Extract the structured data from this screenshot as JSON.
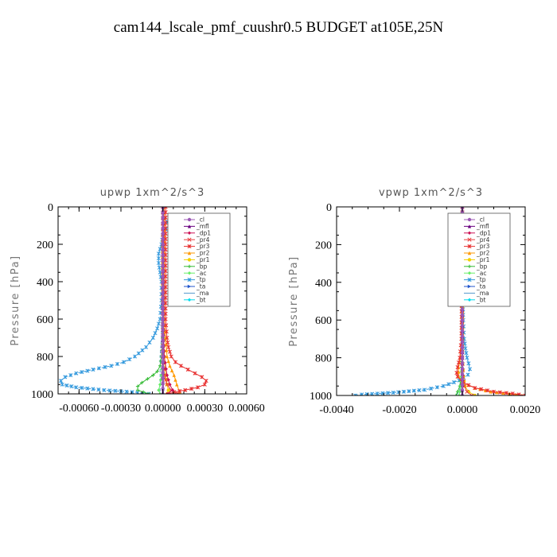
{
  "figure": {
    "title": "cam144_lscale_pmf_cuushr0.5  BUDGET at105E,25N"
  },
  "legend_entries": [
    {
      "name": "_cl",
      "color": "#9b59b6"
    },
    {
      "name": "_mfl",
      "color": "#6a0080"
    },
    {
      "name": "_dp1",
      "color": "#cc1155"
    },
    {
      "name": "_pr4",
      "color": "#e84040"
    },
    {
      "name": "_pr3",
      "color": "#e83030"
    },
    {
      "name": "_pr2",
      "color": "#ff9900"
    },
    {
      "name": "_pr1",
      "color": "#f2d000"
    },
    {
      "name": "_bp",
      "color": "#33bb33"
    },
    {
      "name": "_ac",
      "color": "#66ee66"
    },
    {
      "name": "_tp",
      "color": "#3399dd"
    },
    {
      "name": "_ta",
      "color": "#2255cc"
    },
    {
      "name": "_ma",
      "color": "#5599cc"
    },
    {
      "name": "_bt",
      "color": "#00ddee"
    }
  ],
  "chart_data": [
    {
      "type": "line",
      "title": "upwp   1xm^2/s^3",
      "xlabel": "",
      "ylabel": "Pressure [hPa]",
      "xlim": [
        -0.00075,
        0.0006
      ],
      "ylim": [
        1000,
        0
      ],
      "x_ticks": [
        -0.0006,
        -0.0003,
        0.0,
        0.0003,
        0.0006
      ],
      "x_tick_labels": [
        "-0.00060",
        "-0.00030",
        "0.00000",
        "0.00030",
        "0.00060"
      ],
      "y_ticks": [
        0,
        200,
        400,
        600,
        800,
        1000
      ],
      "y_tick_labels": [
        "0",
        "200",
        "400",
        "600",
        "800",
        "1000"
      ],
      "series": [
        {
          "name": "_tp",
          "color": "#3399dd",
          "p": [
            0,
            60,
            100,
            120,
            150,
            200,
            250,
            300,
            350,
            400,
            500,
            600,
            650,
            700,
            750,
            800,
            830,
            850,
            870,
            890,
            910,
            930,
            950,
            965,
            980,
            990,
            1000
          ],
          "x": [
            0.0,
            1e-05,
            5e-05,
            2e-05,
            0.0,
            -1e-05,
            -3e-05,
            -3e-05,
            -2e-05,
            -1e-05,
            -1e-05,
            -2e-05,
            -4e-05,
            -7e-05,
            -0.00012,
            -0.0002,
            -0.00028,
            -0.00037,
            -0.0005,
            -0.00062,
            -0.0007,
            -0.00073,
            -0.00072,
            -0.00062,
            -0.00042,
            -0.00022,
            -0.0001
          ]
        },
        {
          "name": "_ma",
          "color": "#5599cc",
          "p": [
            0,
            200,
            400,
            600,
            700,
            800,
            850,
            900,
            950,
            1000
          ],
          "x": [
            0.0,
            0.0,
            0.0,
            -1e-05,
            -1e-05,
            -2e-05,
            -2e-05,
            -2e-05,
            -2e-05,
            -2e-05
          ]
        },
        {
          "name": "_bp",
          "color": "#33bb33",
          "p": [
            0,
            400,
            600,
            700,
            800,
            850,
            880,
            900,
            920,
            940,
            960,
            980,
            1000
          ],
          "x": [
            0.0,
            0.0,
            0.0,
            0.0,
            -1e-05,
            -2e-05,
            -4e-05,
            -7e-05,
            -0.00011,
            -0.00015,
            -0.00018,
            -0.00018,
            -0.0001
          ]
        },
        {
          "name": "_ac",
          "color": "#66ee66",
          "p": [
            0,
            600,
            800,
            900,
            950,
            980,
            1000
          ],
          "x": [
            0.0,
            0.0,
            0.0,
            -1e-05,
            -2e-05,
            -3e-05,
            -2e-05
          ]
        },
        {
          "name": "_pr1",
          "color": "#f2d000",
          "p": [
            0,
            600,
            800,
            900,
            950,
            980,
            1000
          ],
          "x": [
            0.0,
            0.0,
            1e-05,
            2e-05,
            3e-05,
            4e-05,
            3e-05
          ]
        },
        {
          "name": "_pr2",
          "color": "#ff9900",
          "p": [
            0,
            400,
            600,
            700,
            800,
            850,
            900,
            950,
            990,
            1000
          ],
          "x": [
            1e-05,
            1e-05,
            1e-05,
            2e-05,
            3e-05,
            5e-05,
            8e-05,
            0.0001,
            0.00012,
            0.0001
          ]
        },
        {
          "name": "_pr3",
          "color": "#e83030",
          "p": [
            0,
            200,
            400,
            600,
            700,
            750,
            800,
            830,
            850,
            870,
            890,
            910,
            930,
            950,
            965,
            980,
            990,
            1000
          ],
          "x": [
            2e-05,
            2e-05,
            2e-05,
            2e-05,
            3e-05,
            4e-05,
            6e-05,
            9e-05,
            0.00013,
            0.00018,
            0.00023,
            0.00028,
            0.00031,
            0.0003,
            0.00025,
            0.00016,
            8e-05,
            4e-05
          ]
        },
        {
          "name": "_pr4",
          "color": "#e84040",
          "p": [
            0,
            600,
            800,
            900,
            950,
            980,
            1000
          ],
          "x": [
            0.0,
            0.0,
            0.0,
            1e-05,
            3e-05,
            6e-05,
            0.00011
          ]
        },
        {
          "name": "_dp1",
          "color": "#cc1155",
          "p": [
            0,
            200,
            400,
            600,
            800,
            900,
            950,
            980,
            1000
          ],
          "x": [
            0.0,
            0.0,
            0.0,
            0.0,
            1e-05,
            3e-05,
            5e-05,
            7e-05,
            3e-05
          ]
        },
        {
          "name": "_mfl",
          "color": "#6a0080",
          "p": [
            0,
            200,
            400,
            600,
            800,
            1000
          ],
          "x": [
            0.0,
            0.0,
            0.0,
            0.0,
            0.0,
            0.0
          ]
        },
        {
          "name": "_cl",
          "color": "#9b59b6",
          "p": [
            0,
            200,
            400,
            600,
            800,
            1000
          ],
          "x": [
            0.0,
            0.0,
            0.0,
            0.0,
            0.0,
            0.0
          ]
        }
      ]
    },
    {
      "type": "line",
      "title": "vpwp   1xm^2/s^3",
      "xlabel": "",
      "ylabel": "Pressure [hPa]",
      "xlim": [
        -0.004,
        0.002
      ],
      "ylim": [
        1000,
        0
      ],
      "x_ticks": [
        -0.004,
        -0.002,
        0.0,
        0.002
      ],
      "x_tick_labels": [
        "-0.0040",
        "-0.0020",
        "0.0000",
        "0.0020"
      ],
      "y_ticks": [
        0,
        200,
        400,
        600,
        800,
        1000
      ],
      "y_tick_labels": [
        "0",
        "200",
        "400",
        "600",
        "800",
        "1000"
      ],
      "series": [
        {
          "name": "_tp",
          "color": "#3399dd",
          "p": [
            0,
            400,
            600,
            700,
            750,
            800,
            830,
            860,
            890,
            920,
            950,
            970,
            985,
            995,
            1000
          ],
          "x": [
            0.0,
            0.0,
            3e-05,
            6e-05,
            0.0001,
            0.00015,
            0.0002,
            0.00024,
            0.00018,
            -0.0001,
            -0.0006,
            -0.0012,
            -0.0022,
            -0.0032,
            -0.0034
          ]
        },
        {
          "name": "_ma",
          "color": "#5599cc",
          "p": [
            0,
            600,
            800,
            900,
            950,
            980,
            1000
          ],
          "x": [
            0.0,
            0.0,
            0.0,
            -3e-05,
            -6e-05,
            -0.0001,
            -0.0002
          ]
        },
        {
          "name": "_bp",
          "color": "#33bb33",
          "p": [
            0,
            700,
            850,
            900,
            950,
            980,
            1000
          ],
          "x": [
            0.0,
            0.0,
            -2e-05,
            -4e-05,
            -8e-05,
            -0.00015,
            -0.0002
          ]
        },
        {
          "name": "_ac",
          "color": "#66ee66",
          "p": [
            0,
            800,
            900,
            950,
            980,
            1000
          ],
          "x": [
            0.0,
            0.0,
            -2e-05,
            -4e-05,
            -8e-05,
            -0.0001
          ]
        },
        {
          "name": "_pr1",
          "color": "#f2d000",
          "p": [
            0,
            800,
            900,
            950,
            980,
            1000
          ],
          "x": [
            0.0,
            0.0,
            3e-05,
            8e-05,
            0.0002,
            0.0004
          ]
        },
        {
          "name": "_pr2",
          "color": "#ff9900",
          "p": [
            0,
            700,
            800,
            850,
            900,
            930,
            960,
            980,
            990,
            1000
          ],
          "x": [
            0.0,
            -2e-05,
            -6e-05,
            -0.00012,
            -0.00012,
            0.0,
            0.0004,
            0.0009,
            0.0015,
            0.0019
          ]
        },
        {
          "name": "_pr3",
          "color": "#e83030",
          "p": [
            0,
            700,
            800,
            850,
            880,
            900,
            930,
            960,
            980,
            990,
            1000
          ],
          "x": [
            0.0,
            -3e-05,
            -8e-05,
            -0.00015,
            -0.00018,
            -0.00015,
            0.0,
            0.0004,
            0.001,
            0.0016,
            0.002
          ]
        },
        {
          "name": "_pr4",
          "color": "#e84040",
          "p": [
            0,
            800,
            900,
            950,
            980,
            1000
          ],
          "x": [
            0.0,
            0.0,
            2e-05,
            6e-05,
            0.00015,
            0.0003
          ]
        },
        {
          "name": "_dp1",
          "color": "#cc1155",
          "p": [
            0,
            200,
            400,
            600,
            800,
            1000
          ],
          "x": [
            0.0,
            0.0,
            0.0,
            0.0,
            0.0,
            0.0
          ]
        },
        {
          "name": "_mfl",
          "color": "#6a0080",
          "p": [
            0,
            200,
            400,
            600,
            800,
            1000
          ],
          "x": [
            0.0,
            0.0,
            0.0,
            0.0,
            0.0,
            0.0
          ]
        },
        {
          "name": "_cl",
          "color": "#9b59b6",
          "p": [
            0,
            200,
            400,
            600,
            800,
            1000
          ],
          "x": [
            0.0,
            0.0,
            0.0,
            0.0,
            0.0,
            0.0
          ]
        }
      ]
    }
  ]
}
